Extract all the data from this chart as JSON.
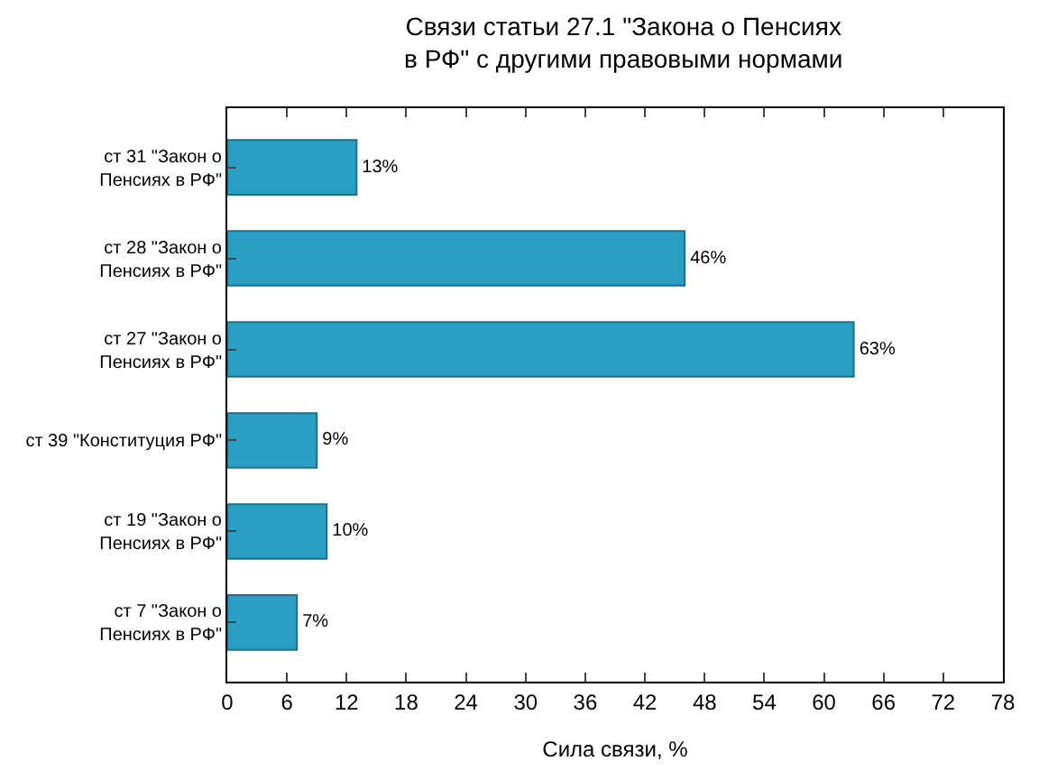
{
  "chart_data": {
    "type": "bar",
    "orientation": "horizontal",
    "title": "Связи статьи 27.1 \"Закона о Пенсиях\nв РФ\" с другими правовыми нормами",
    "xlabel": "Сила связи, %",
    "categories": [
      "ст 31 \"Закон о\nПенсиях в РФ\"",
      "ст 28 \"Закон о\nПенсиях в РФ\"",
      "ст 27 \"Закон о\nПенсиях в РФ\"",
      "ст 39 \"Конституция РФ\"",
      "ст 19 \"Закон о\nПенсиях в РФ\"",
      "ст 7 \"Закон о\nПенсиях в РФ\""
    ],
    "values": [
      13,
      46,
      63,
      9,
      10,
      7
    ],
    "value_labels": [
      "13%",
      "46%",
      "63%",
      "9%",
      "10%",
      "7%"
    ],
    "color": "#2a9fc4",
    "xlim": [
      0,
      78
    ],
    "xticks": [
      0,
      6,
      12,
      18,
      24,
      30,
      36,
      42,
      48,
      54,
      60,
      66,
      72,
      78
    ],
    "legend": false
  }
}
